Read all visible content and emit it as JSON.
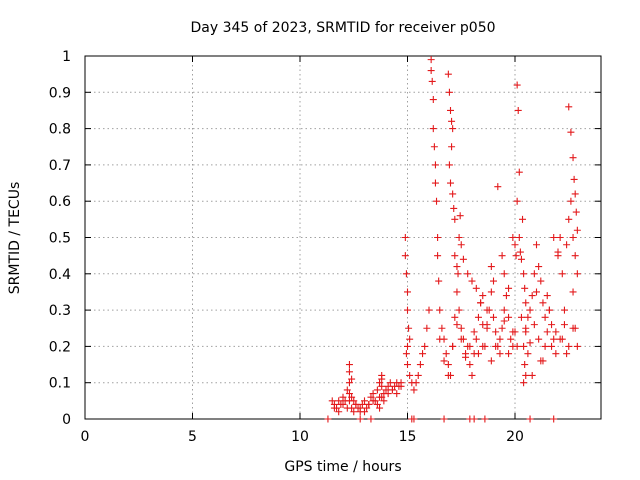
{
  "chart_data": {
    "type": "scatter",
    "title": "Day 345 of 2023, SRMTID for receiver p050",
    "xlabel": "GPS time / hours",
    "ylabel": "SRMTID / TECUs",
    "xlim": [
      0,
      24
    ],
    "ylim": [
      0,
      1
    ],
    "xticks": [
      0,
      5,
      10,
      15,
      20
    ],
    "xtick_labels": [
      "0",
      "5",
      "10",
      "15",
      "20"
    ],
    "yticks": [
      0,
      0.1,
      0.2,
      0.3,
      0.4,
      0.5,
      0.6,
      0.7,
      0.8,
      0.9,
      1
    ],
    "ytick_labels": [
      "0",
      "0.1",
      "0.2",
      "0.3",
      "0.4",
      "0.5",
      "0.6",
      "0.7",
      "0.8",
      "0.9",
      "1"
    ],
    "grid": true,
    "marker": "+",
    "color": "#e31a1c",
    "series": [
      {
        "name": "SRMTID",
        "x": [
          11.5,
          11.6,
          11.7,
          11.8,
          11.9,
          12.0,
          12.1,
          12.2,
          12.3,
          12.4,
          12.5,
          12.6,
          12.7,
          12.8,
          12.9,
          13.0,
          13.1,
          13.2,
          13.3,
          13.4,
          13.5,
          13.6,
          13.7,
          13.8,
          13.9,
          14.0,
          14.1,
          14.2,
          14.3,
          14.4,
          14.5,
          14.6,
          14.7,
          11.6,
          11.8,
          12.0,
          12.2,
          12.3,
          12.4,
          12.5,
          12.6,
          12.8,
          13.0,
          13.2,
          13.4,
          13.6,
          13.7,
          13.8,
          13.9,
          14.1,
          14.3,
          14.5,
          14.7,
          12.3,
          12.3,
          12.3,
          12.4,
          13.7,
          13.8,
          13.8,
          14.9,
          14.9,
          14.95,
          15.0,
          15.0,
          15.05,
          15.1,
          15.0,
          14.95,
          15.0,
          15.1,
          15.2,
          15.3,
          15.4,
          15.5,
          15.6,
          15.7,
          15.8,
          15.9,
          16.0,
          16.1,
          16.1,
          16.15,
          16.2,
          16.2,
          16.25,
          16.3,
          16.3,
          16.35,
          16.4,
          16.4,
          16.45,
          16.5,
          16.6,
          16.7,
          16.8,
          16.9,
          17.0,
          17.1,
          17.2,
          17.3,
          17.4,
          17.5,
          17.6,
          17.7,
          17.8,
          17.9,
          18.0,
          18.1,
          18.2,
          18.3,
          18.4,
          18.5,
          18.6,
          18.7,
          18.8,
          18.9,
          19.0,
          19.1,
          19.2,
          19.3,
          19.4,
          19.5,
          19.6,
          19.7,
          19.8,
          19.9,
          20.0,
          16.9,
          16.95,
          17.0,
          17.05,
          17.1,
          17.05,
          16.95,
          17.0,
          17.1,
          17.15,
          17.2,
          17.2,
          17.3,
          17.35,
          17.4,
          17.45,
          17.5,
          17.6,
          17.8,
          18.0,
          18.2,
          18.4,
          18.5,
          18.7,
          18.9,
          19.0,
          19.2,
          19.4,
          19.5,
          19.7,
          19.9,
          20.0,
          20.05,
          20.1,
          20.1,
          20.15,
          20.2,
          20.2,
          20.25,
          20.3,
          20.35,
          20.4,
          20.45,
          20.5,
          20.6,
          20.7,
          20.8,
          20.9,
          21.0,
          21.1,
          21.2,
          21.3,
          21.4,
          21.5,
          21.6,
          21.7,
          21.8,
          21.9,
          22.0,
          22.1,
          22.2,
          22.3,
          22.4,
          22.5,
          22.6,
          22.7,
          22.8,
          22.9,
          20.4,
          20.45,
          20.5,
          20.4,
          20.5,
          20.6,
          20.8,
          21.0,
          21.2,
          21.4,
          21.6,
          21.8,
          22.0,
          22.2,
          22.4,
          22.5,
          22.6,
          22.7,
          22.75,
          22.8,
          22.85,
          22.9,
          22.7,
          22.8,
          22.9,
          16.5,
          16.7,
          16.9,
          17.1,
          17.3,
          17.5,
          17.7,
          17.9,
          18.1,
          18.3,
          18.5,
          18.7,
          18.9,
          19.1,
          19.3,
          19.5,
          19.7,
          19.9,
          20.1,
          20.3,
          20.5,
          20.7,
          20.9,
          21.1,
          21.3,
          21.5,
          21.7,
          21.9,
          22.1,
          22.3,
          22.5,
          22.7,
          11.3,
          12.8,
          13.3,
          15.2,
          15.3,
          16.7,
          17.9,
          18.1,
          18.6,
          20.7,
          21.8
        ],
        "y": [
          0.05,
          0.04,
          0.03,
          0.05,
          0.04,
          0.06,
          0.05,
          0.08,
          0.07,
          0.06,
          0.05,
          0.04,
          0.03,
          0.02,
          0.04,
          0.05,
          0.03,
          0.04,
          0.06,
          0.07,
          0.05,
          0.08,
          0.06,
          0.09,
          0.07,
          0.08,
          0.09,
          0.1,
          0.08,
          0.09,
          0.1,
          0.09,
          0.1,
          0.03,
          0.02,
          0.04,
          0.03,
          0.05,
          0.03,
          0.02,
          0.04,
          0.03,
          0.02,
          0.04,
          0.05,
          0.04,
          0.03,
          0.06,
          0.05,
          0.07,
          0.08,
          0.07,
          0.09,
          0.1,
          0.13,
          0.15,
          0.11,
          0.1,
          0.11,
          0.12,
          0.5,
          0.45,
          0.4,
          0.35,
          0.3,
          0.25,
          0.22,
          0.2,
          0.18,
          0.15,
          0.12,
          0.1,
          0.08,
          0.1,
          0.12,
          0.15,
          0.18,
          0.2,
          0.25,
          0.3,
          0.99,
          0.96,
          0.93,
          0.88,
          0.8,
          0.75,
          0.7,
          0.65,
          0.6,
          0.5,
          0.45,
          0.38,
          0.3,
          0.25,
          0.22,
          0.18,
          0.15,
          0.12,
          0.2,
          0.28,
          0.35,
          0.3,
          0.25,
          0.22,
          0.18,
          0.2,
          0.15,
          0.12,
          0.18,
          0.22,
          0.28,
          0.32,
          0.26,
          0.2,
          0.25,
          0.3,
          0.35,
          0.28,
          0.24,
          0.2,
          0.18,
          0.25,
          0.3,
          0.34,
          0.28,
          0.22,
          0.2,
          0.24,
          0.95,
          0.9,
          0.85,
          0.82,
          0.8,
          0.75,
          0.7,
          0.65,
          0.62,
          0.58,
          0.55,
          0.45,
          0.42,
          0.4,
          0.5,
          0.56,
          0.48,
          0.44,
          0.4,
          0.38,
          0.36,
          0.32,
          0.34,
          0.3,
          0.42,
          0.38,
          0.64,
          0.45,
          0.4,
          0.36,
          0.5,
          0.48,
          0.45,
          0.6,
          0.92,
          0.85,
          0.68,
          0.5,
          0.46,
          0.44,
          0.55,
          0.4,
          0.36,
          0.32,
          0.28,
          0.3,
          0.34,
          0.4,
          0.48,
          0.42,
          0.38,
          0.32,
          0.28,
          0.34,
          0.3,
          0.26,
          0.22,
          0.24,
          0.45,
          0.5,
          0.4,
          0.3,
          0.48,
          0.55,
          0.6,
          0.5,
          0.45,
          0.4,
          0.2,
          0.15,
          0.12,
          0.1,
          0.25,
          0.18,
          0.12,
          0.35,
          0.16,
          0.2,
          0.3,
          0.5,
          0.46,
          0.22,
          0.18,
          0.86,
          0.79,
          0.72,
          0.66,
          0.62,
          0.57,
          0.52,
          0.35,
          0.25,
          0.2,
          0.22,
          0.16,
          0.12,
          0.2,
          0.26,
          0.22,
          0.17,
          0.2,
          0.24,
          0.18,
          0.2,
          0.26,
          0.16,
          0.2,
          0.22,
          0.27,
          0.18,
          0.24,
          0.2,
          0.28,
          0.24,
          0.21,
          0.26,
          0.22,
          0.16,
          0.24,
          0.2,
          0.18,
          0.22,
          0.26,
          0.2,
          0.25,
          0,
          0,
          0,
          0,
          0,
          0,
          0,
          0,
          0,
          0,
          0
        ]
      }
    ]
  }
}
